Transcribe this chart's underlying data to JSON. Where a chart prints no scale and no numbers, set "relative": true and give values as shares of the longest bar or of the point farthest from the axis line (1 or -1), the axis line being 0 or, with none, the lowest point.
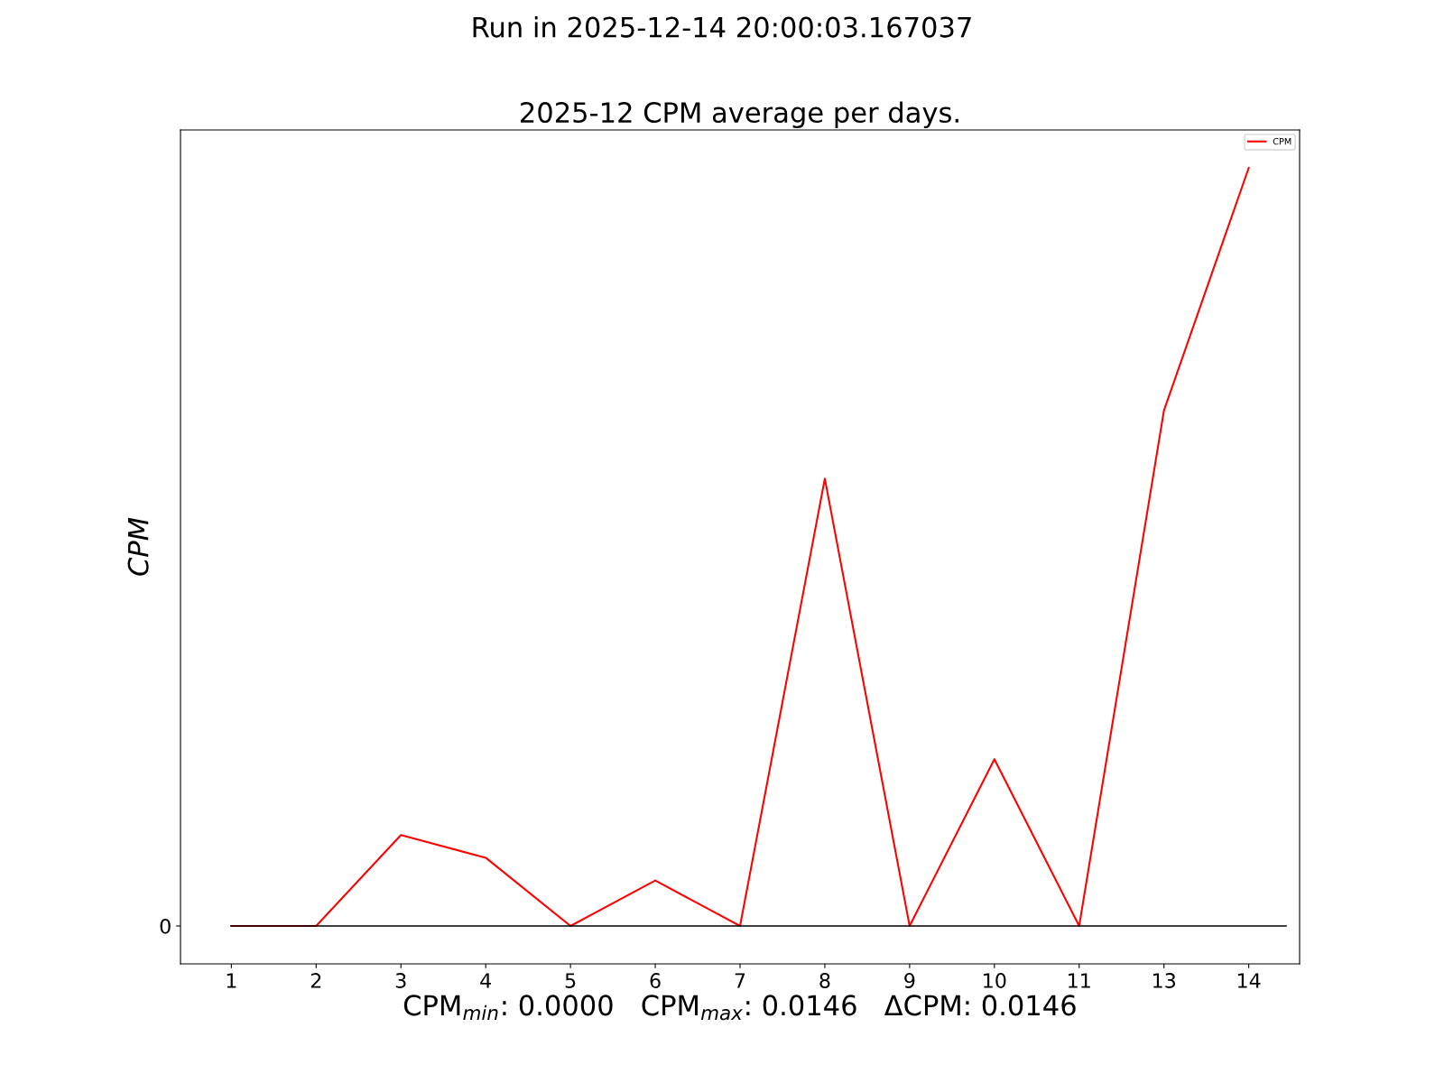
{
  "chart_data": {
    "type": "line",
    "title": "Run in 2025-12-14 20:00:03.167037",
    "subtitle": "2025-12 CPM average per days.",
    "xlabel": "CPM$_{min}$: 0.0000   CPM$_{max}$: 0.0146   ΔCPM: 0.0146",
    "ylabel": "CPM",
    "categories": [
      "1",
      "2",
      "3",
      "4",
      "5",
      "6",
      "7",
      "8",
      "9",
      "10",
      "11",
      "13",
      "14"
    ],
    "series": [
      {
        "name": "CPM",
        "color": "#ff0000",
        "values": [
          0,
          0,
          0.12,
          0.09,
          0,
          0.06,
          0,
          0.59,
          0,
          0.22,
          0,
          0.68,
          1
        ]
      }
    ],
    "relative": true,
    "ref_lines": [
      {
        "axis": "y",
        "value": 0,
        "label": "0",
        "color": "#000000",
        "line_style": "solid"
      }
    ],
    "legend": "top right",
    "grid": false,
    "line_style": "solid"
  }
}
